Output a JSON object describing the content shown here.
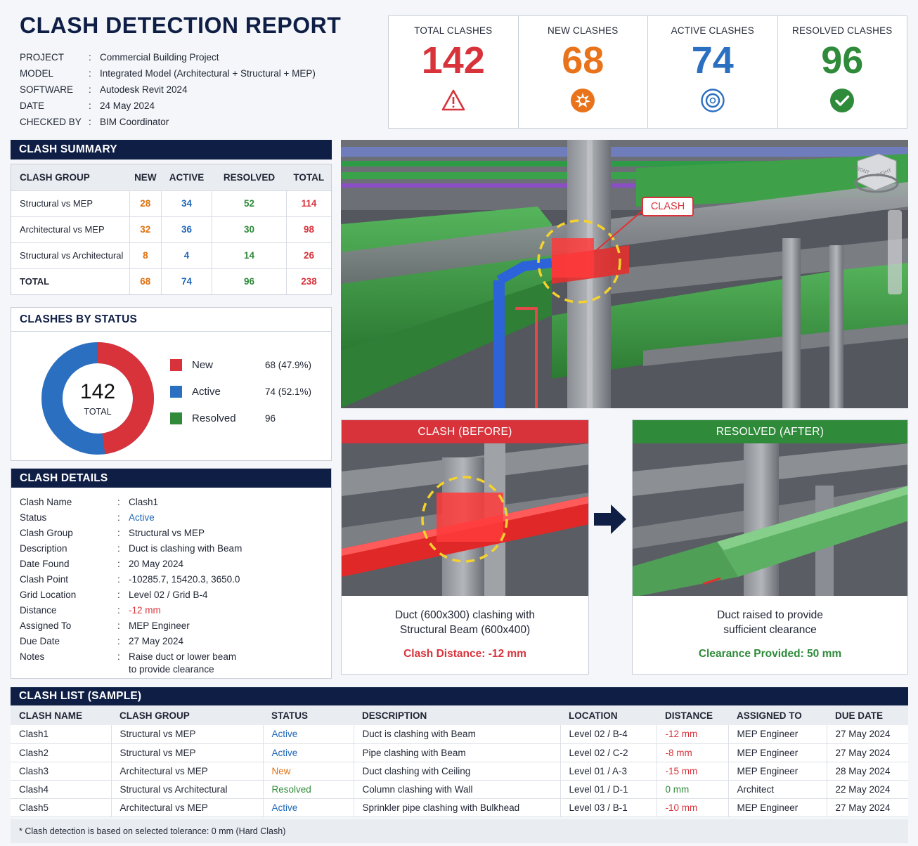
{
  "header": {
    "title": "CLASH DETECTION REPORT",
    "meta": [
      {
        "key": "PROJECT",
        "value": "Commercial Building Project"
      },
      {
        "key": "MODEL",
        "value": "Integrated Model (Architectural + Structural + MEP)"
      },
      {
        "key": "SOFTWARE",
        "value": "Autodesk Revit 2024"
      },
      {
        "key": "DATE",
        "value": "24 May 2024"
      },
      {
        "key": "CHECKED BY",
        "value": "BIM Coordinator"
      }
    ]
  },
  "kpis": [
    {
      "label": "TOTAL CLASHES",
      "value": "142",
      "color": "#d8333b",
      "icon": "warning-icon"
    },
    {
      "label": "NEW CLASHES",
      "value": "68",
      "color": "#e8731a",
      "icon": "burst-icon"
    },
    {
      "label": "ACTIVE CLASHES",
      "value": "74",
      "color": "#2b6fc0",
      "icon": "target-icon"
    },
    {
      "label": "RESOLVED CLASHES",
      "value": "96",
      "color": "#2f8a3a",
      "icon": "check-icon"
    }
  ],
  "summary": {
    "title": "CLASH SUMMARY",
    "columns": [
      "CLASH GROUP",
      "NEW",
      "ACTIVE",
      "RESOLVED",
      "TOTAL"
    ],
    "rows": [
      [
        "Structural vs MEP",
        "28",
        "34",
        "52",
        "114"
      ],
      [
        "Architectural vs MEP",
        "32",
        "36",
        "30",
        "98"
      ],
      [
        "Structural vs Architectural",
        "8",
        "4",
        "14",
        "26"
      ]
    ],
    "total": [
      "TOTAL",
      "68",
      "74",
      "96",
      "238"
    ]
  },
  "status": {
    "title": "CLASHES BY STATUS",
    "center_value": "142",
    "center_label": "TOTAL",
    "items": [
      {
        "name": "New",
        "value": "68 (47.9%)",
        "color": "#d8333b"
      },
      {
        "name": "Active",
        "value": "74 (52.1%)",
        "color": "#2b6fc0"
      },
      {
        "name": "Resolved",
        "value": "96",
        "color": "#2f8a3a"
      }
    ],
    "donut_shares": {
      "new": 0.479,
      "active": 0.521
    }
  },
  "details": {
    "title": "CLASH DETAILS",
    "rows": [
      {
        "key": "Clash Name",
        "value": "Clash1"
      },
      {
        "key": "Status",
        "value": "Active",
        "color": "#1f66b8"
      },
      {
        "key": "Clash Group",
        "value": "Structural vs MEP"
      },
      {
        "key": "Description",
        "value": "Duct is clashing with Beam"
      },
      {
        "key": "Date Found",
        "value": "20 May 2024"
      },
      {
        "key": "Clash Point",
        "value": "-10285.7, 15420.3, 3650.0"
      },
      {
        "key": "Grid Location",
        "value": "Level 02 / Grid B-4"
      },
      {
        "key": "Distance",
        "value": "-12 mm",
        "color": "#d8333b"
      },
      {
        "key": "Assigned To",
        "value": "MEP Engineer"
      },
      {
        "key": "Due Date",
        "value": "27 May 2024"
      },
      {
        "key": "Notes",
        "value": "Raise duct or lower beam\nto provide clearance"
      }
    ]
  },
  "scene": {
    "callout": "CLASH",
    "viewcube_labels": [
      "FRONT",
      "RIGHT"
    ]
  },
  "before": {
    "title": "CLASH (BEFORE)",
    "text_line1": "Duct (600x300) clashing with",
    "text_line2": "Structural Beam (600x400)",
    "sub": "Clash Distance: -12 mm"
  },
  "after": {
    "title": "RESOLVED (AFTER)",
    "text_line1": "Duct raised to provide",
    "text_line2": "sufficient clearance",
    "sub": "Clearance Provided: 50 mm"
  },
  "clash_list": {
    "title": "CLASH LIST (SAMPLE)",
    "columns": [
      "CLASH NAME",
      "CLASH GROUP",
      "STATUS",
      "DESCRIPTION",
      "LOCATION",
      "DISTANCE",
      "ASSIGNED TO",
      "DUE DATE"
    ],
    "rows": [
      [
        "Clash1",
        "Structural vs MEP",
        "Active",
        "Duct is clashing with Beam",
        "Level 02 / B-4",
        "-12 mm",
        "MEP Engineer",
        "27 May 2024"
      ],
      [
        "Clash2",
        "Structural vs MEP",
        "Active",
        "Pipe clashing with Beam",
        "Level 02 / C-2",
        "-8 mm",
        "MEP Engineer",
        "27 May 2024"
      ],
      [
        "Clash3",
        "Architectural vs MEP",
        "New",
        "Duct clashing with Ceiling",
        "Level 01 / A-3",
        "-15 mm",
        "MEP Engineer",
        "28 May 2024"
      ],
      [
        "Clash4",
        "Structural vs Architectural",
        "Resolved",
        "Column clashing with Wall",
        "Level 01 / D-1",
        "0 mm",
        "Architect",
        "22 May 2024"
      ],
      [
        "Clash5",
        "Architectural vs MEP",
        "Active",
        "Sprinkler pipe clashing with Bulkhead",
        "Level 03 / B-1",
        "-10 mm",
        "MEP Engineer",
        "27 May 2024"
      ]
    ],
    "status_colors": {
      "Active": "#1f66b8",
      "New": "#e0700f",
      "Resolved": "#2f8a3a"
    },
    "distance_colors": {
      "negative": "#d8333b",
      "zero": "#2f8a3a"
    }
  },
  "footnote": "* Clash detection is based on selected tolerance: 0 mm (Hard Clash)"
}
